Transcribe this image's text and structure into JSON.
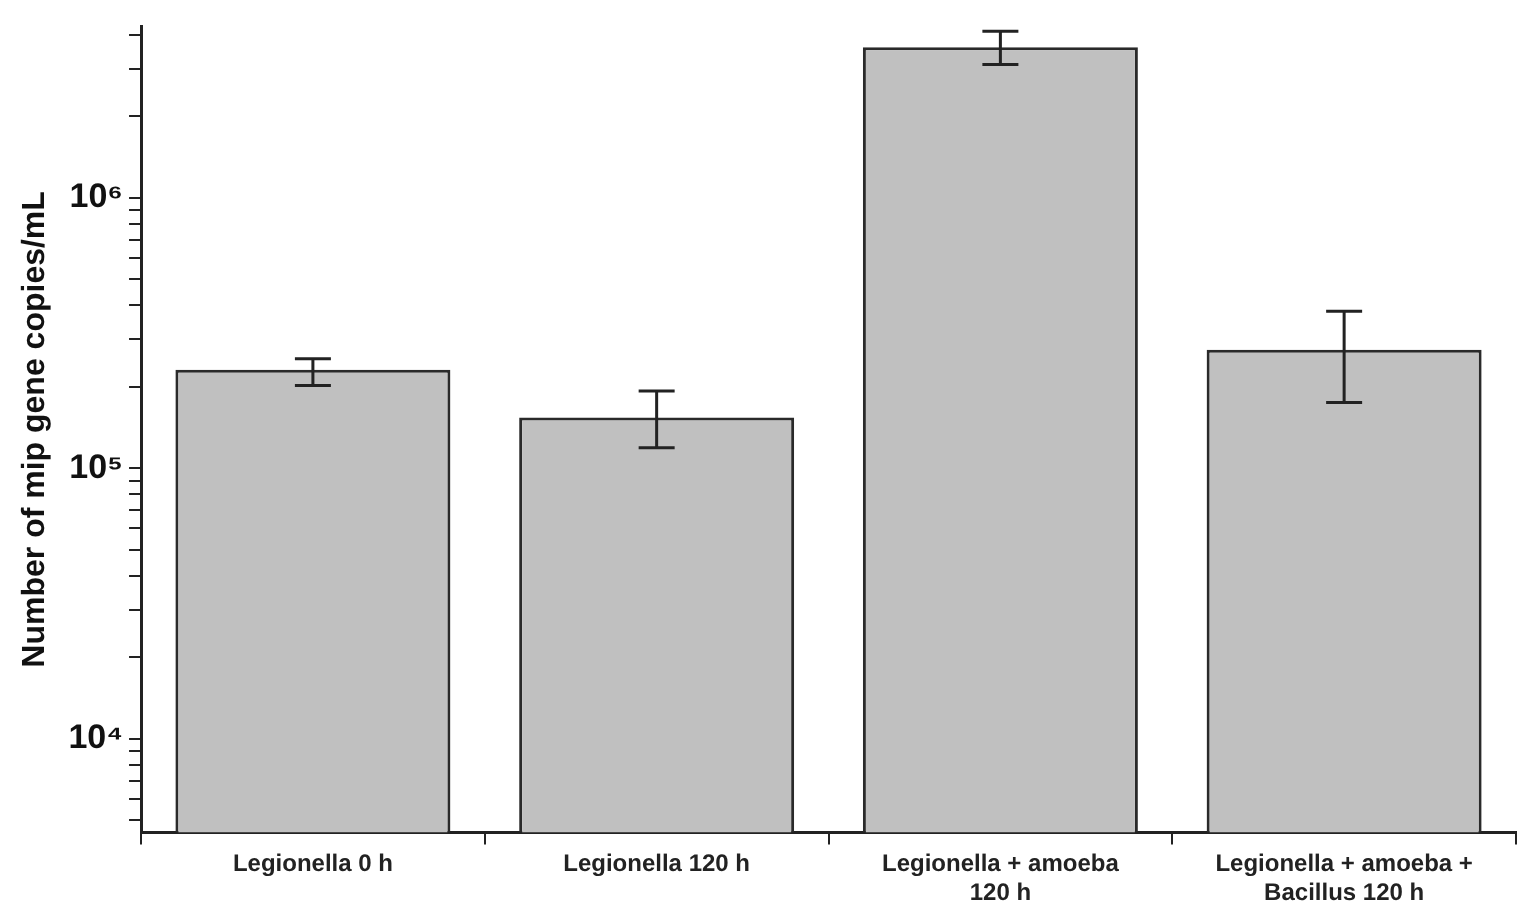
{
  "chart_data": {
    "type": "bar",
    "ylabel": "Number of mip gene copies/mL",
    "categories": [
      "Legionella 0 h",
      "Legionella 120 h",
      "Legionella + amoeba 120 h",
      "Legionella + amoeba + Bacillus 120 h"
    ],
    "values": [
      231000,
      154000,
      3600000,
      274000
    ],
    "errors": [
      [
        202000,
        254000
      ],
      [
        119000,
        193000
      ],
      [
        3110000,
        4130000
      ],
      [
        175000,
        380000
      ]
    ],
    "color": "#c0c0c0",
    "log": true,
    "grid": false,
    "legend": false,
    "ylim": [
      4500,
      4300000
    ],
    "yticks": [
      {
        "value": 5000,
        "label": null
      },
      {
        "value": 6000,
        "label": null
      },
      {
        "value": 7000,
        "label": null
      },
      {
        "value": 8000,
        "label": null
      },
      {
        "value": 9000,
        "label": null
      },
      {
        "value": 10000,
        "label": "10⁴"
      },
      {
        "value": 20000,
        "label": null
      },
      {
        "value": 30000,
        "label": null
      },
      {
        "value": 40000,
        "label": null
      },
      {
        "value": 50000,
        "label": null
      },
      {
        "value": 60000,
        "label": null
      },
      {
        "value": 70000,
        "label": null
      },
      {
        "value": 80000,
        "label": null
      },
      {
        "value": 90000,
        "label": null
      },
      {
        "value": 100000,
        "label": "10⁵"
      },
      {
        "value": 200000,
        "label": null
      },
      {
        "value": 300000,
        "label": null
      },
      {
        "value": 400000,
        "label": null
      },
      {
        "value": 500000,
        "label": null
      },
      {
        "value": 600000,
        "label": null
      },
      {
        "value": 700000,
        "label": null
      },
      {
        "value": 800000,
        "label": null
      },
      {
        "value": 900000,
        "label": null
      },
      {
        "value": 1000000,
        "label": "10⁶"
      },
      {
        "value": 2000000,
        "label": null
      },
      {
        "value": 3000000,
        "label": null
      },
      {
        "value": 4000000,
        "label": null
      }
    ]
  }
}
